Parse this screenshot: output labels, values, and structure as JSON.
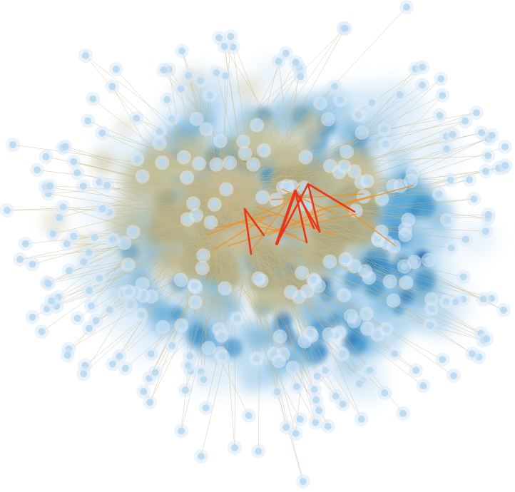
{
  "colors": {
    "background": "#ffffff",
    "density_outer": "#cfe6f6",
    "density_light": "#9fcbea",
    "density_mid": "#5aa7d8",
    "density_deep": "#1f7fc0",
    "density_darkest": "#0d5ea0",
    "density_core": "#a9a67e",
    "density_core_light": "#c7c09a",
    "edge_default": "#c9b78a",
    "edge_medium": "#f0902a",
    "edge_strong": "#e8371a",
    "node_fill": "#b7d8ef",
    "node_halo": "#dbeaf7"
  },
  "visualization": {
    "type": "network-density-map",
    "has_title": false,
    "has_legend": false,
    "has_axes": false,
    "layout": "force-directed"
  }
}
